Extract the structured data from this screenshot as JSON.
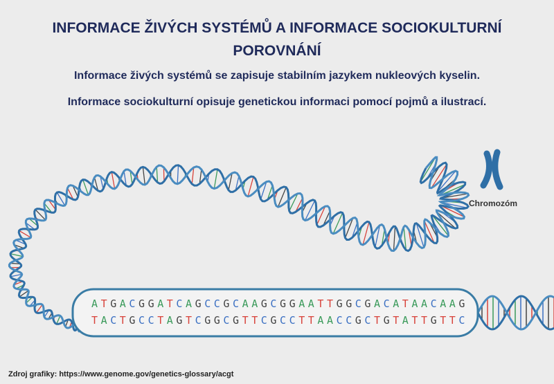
{
  "header": {
    "title": "INFORMACE ŽIVÝCH SYSTÉMŮ A INFORMACE SOCIOKULTURNÍ",
    "subtitle": "POROVNÁNÍ"
  },
  "lines": [
    "Informace živých systémů se zapisuje stabilním jazykem nukleových kyselin.",
    "Informace sociokulturní opisuje genetickou informaci pomocí pojmů a ilustrací."
  ],
  "diagram": {
    "chromosome_label": "Chromozóm",
    "sequence_top": "ATGACGGATCAGCCGCAAGCGGAATTGGCGACATAACAAG",
    "sequence_bottom": "TACTGCCTAGTCGGCGTTCGCCTTAACCGCTGTATTGTTC"
  },
  "source": "Zdroj grafiky: https://www.genome.gov/genetics-glossary/acgt"
}
